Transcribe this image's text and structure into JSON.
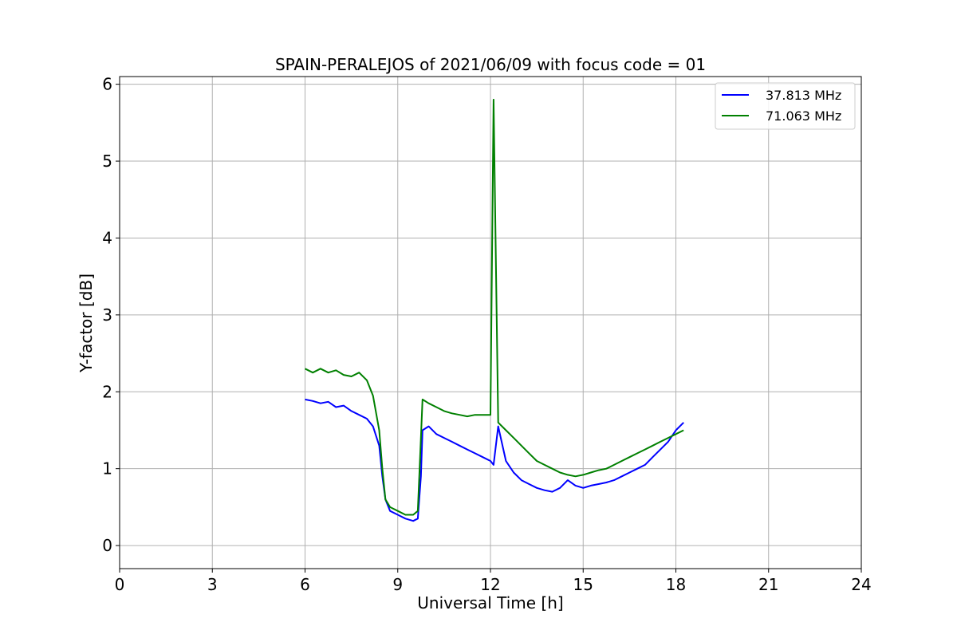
{
  "chart_data": {
    "type": "line",
    "title": "SPAIN-PERALEJOS of 2021/06/09 with focus code = 01",
    "xlabel": "Universal Time [h]",
    "ylabel": "Y-factor [dB]",
    "xlim": [
      0,
      24
    ],
    "ylim": [
      -0.3,
      6.1
    ],
    "xticks": [
      0,
      3,
      6,
      9,
      12,
      15,
      18,
      21,
      24
    ],
    "yticks": [
      0,
      1,
      2,
      3,
      4,
      5,
      6
    ],
    "grid": true,
    "legend_position": "top-right",
    "series": [
      {
        "name": "37.813 MHz",
        "color": "#0000ff",
        "x": [
          6.0,
          6.25,
          6.5,
          6.75,
          7.0,
          7.25,
          7.5,
          7.75,
          8.0,
          8.2,
          8.4,
          8.5,
          8.6,
          8.75,
          9.0,
          9.25,
          9.5,
          9.65,
          9.75,
          9.8,
          10.0,
          10.25,
          10.5,
          10.75,
          11.0,
          11.25,
          11.5,
          11.75,
          12.0,
          12.1,
          12.25,
          12.5,
          12.75,
          13.0,
          13.25,
          13.5,
          13.75,
          14.0,
          14.25,
          14.5,
          14.75,
          15.0,
          15.25,
          15.5,
          15.75,
          16.0,
          16.25,
          16.5,
          16.75,
          17.0,
          17.25,
          17.5,
          17.75,
          18.0,
          18.25
        ],
        "y": [
          1.9,
          1.88,
          1.85,
          1.87,
          1.8,
          1.82,
          1.75,
          1.7,
          1.65,
          1.55,
          1.3,
          0.9,
          0.6,
          0.45,
          0.4,
          0.35,
          0.32,
          0.35,
          0.9,
          1.5,
          1.55,
          1.45,
          1.4,
          1.35,
          1.3,
          1.25,
          1.2,
          1.15,
          1.1,
          1.05,
          1.55,
          1.1,
          0.95,
          0.85,
          0.8,
          0.75,
          0.72,
          0.7,
          0.75,
          0.85,
          0.78,
          0.75,
          0.78,
          0.8,
          0.82,
          0.85,
          0.9,
          0.95,
          1.0,
          1.05,
          1.15,
          1.25,
          1.35,
          1.5,
          1.6
        ]
      },
      {
        "name": "71.063 MHz",
        "color": "#008000",
        "x": [
          6.0,
          6.25,
          6.5,
          6.75,
          7.0,
          7.25,
          7.5,
          7.75,
          8.0,
          8.2,
          8.4,
          8.5,
          8.6,
          8.75,
          9.0,
          9.25,
          9.5,
          9.65,
          9.75,
          9.8,
          10.0,
          10.25,
          10.5,
          10.75,
          11.0,
          11.25,
          11.5,
          11.75,
          12.0,
          12.1,
          12.25,
          12.5,
          12.75,
          13.0,
          13.25,
          13.5,
          13.75,
          14.0,
          14.25,
          14.5,
          14.75,
          15.0,
          15.25,
          15.5,
          15.75,
          16.0,
          16.25,
          16.5,
          16.75,
          17.0,
          17.25,
          17.5,
          17.75,
          18.0,
          18.25
        ],
        "y": [
          2.3,
          2.25,
          2.3,
          2.25,
          2.28,
          2.22,
          2.2,
          2.25,
          2.15,
          1.95,
          1.5,
          1.0,
          0.6,
          0.5,
          0.45,
          0.4,
          0.4,
          0.45,
          1.4,
          1.9,
          1.85,
          1.8,
          1.75,
          1.72,
          1.7,
          1.68,
          1.7,
          1.7,
          1.7,
          5.8,
          1.6,
          1.5,
          1.4,
          1.3,
          1.2,
          1.1,
          1.05,
          1.0,
          0.95,
          0.92,
          0.9,
          0.92,
          0.95,
          0.98,
          1.0,
          1.05,
          1.1,
          1.15,
          1.2,
          1.25,
          1.3,
          1.35,
          1.4,
          1.45,
          1.5
        ]
      }
    ]
  }
}
